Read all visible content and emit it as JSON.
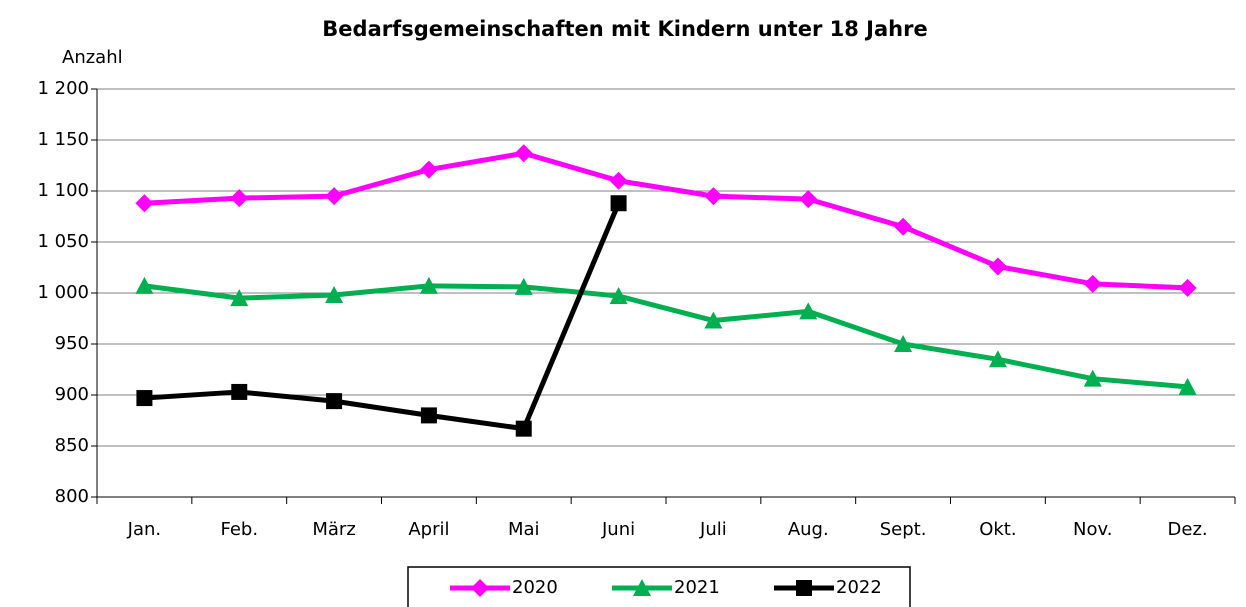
{
  "chart_data": {
    "type": "line",
    "title": "Bedarfsgemeinschaften mit Kindern unter 18 Jahre",
    "y_label": "Anzahl",
    "categories": [
      "Jan.",
      "Feb.",
      "März",
      "April",
      "Mai",
      "Juni",
      "Juli",
      "Aug.",
      "Sept.",
      "Okt.",
      "Nov.",
      "Dez."
    ],
    "series": [
      {
        "name": "2020",
        "color": "#ff00ff",
        "marker": "diamond",
        "values": [
          1088,
          1093,
          1095,
          1121,
          1137,
          1110,
          1095,
          1092,
          1065,
          1026,
          1009,
          1005
        ]
      },
      {
        "name": "2021",
        "color": "#00b050",
        "marker": "triangle",
        "values": [
          1007,
          995,
          998,
          1007,
          1006,
          997,
          973,
          982,
          950,
          935,
          916,
          908
        ]
      },
      {
        "name": "2022",
        "color": "#000000",
        "marker": "square",
        "values": [
          897,
          903,
          894,
          880,
          867,
          1088,
          null,
          null,
          null,
          null,
          null,
          null
        ]
      }
    ],
    "ylim": [
      800,
      1200
    ],
    "yticks": [
      800,
      850,
      900,
      950,
      {
        "value": 1000,
        "label": "1 000"
      },
      {
        "value": 1050,
        "label": "1 050"
      },
      {
        "value": 1100,
        "label": "1 100"
      },
      {
        "value": 1150,
        "label": "1 150"
      },
      {
        "value": 1200,
        "label": "1 200"
      }
    ],
    "grid": true,
    "legend": "bottom"
  }
}
